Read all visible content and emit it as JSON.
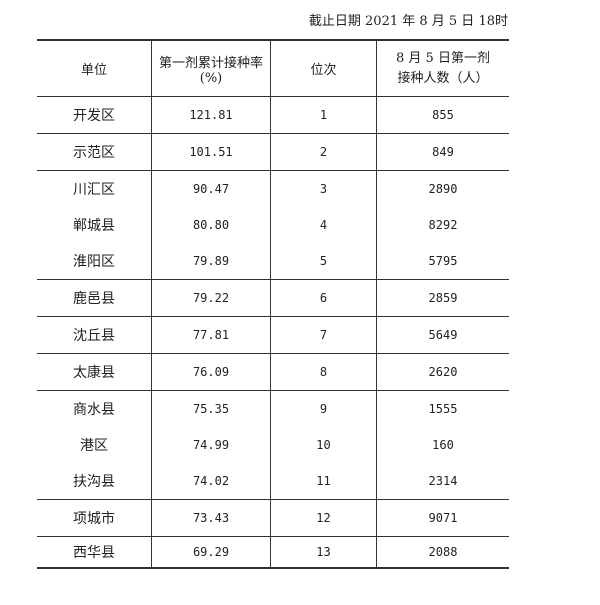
{
  "caption": "截止日期 2021 年 8 月 5 日 18时",
  "table": {
    "headers": [
      "单位",
      "第一剂累计接种率(%)",
      "位次",
      "8 月 5 日第一剂接种人数（人）"
    ],
    "header_last_lines": [
      "8 月 5 日第一剂",
      "接种人数（人）"
    ],
    "rows": [
      [
        "开发区",
        "121.81",
        "1",
        "855"
      ],
      [
        "示范区",
        "101.51",
        "2",
        "849"
      ],
      [
        "川汇区",
        "90.47",
        "3",
        "2890"
      ],
      [
        "郸城县",
        "80.80",
        "4",
        "8292"
      ],
      [
        "淮阳区",
        "79.89",
        "5",
        "5795"
      ],
      [
        "鹿邑县",
        "79.22",
        "6",
        "2859"
      ],
      [
        "沈丘县",
        "77.81",
        "7",
        "5649"
      ],
      [
        "太康县",
        "76.09",
        "8",
        "2620"
      ],
      [
        "商水县",
        "75.35",
        "9",
        "1555"
      ],
      [
        "港区",
        "74.99",
        "10",
        "160"
      ],
      [
        "扶沟县",
        "74.02",
        "11",
        "2314"
      ],
      [
        "项城市",
        "73.43",
        "12",
        "9071"
      ],
      [
        "西华县",
        "69.29",
        "13",
        "2088"
      ]
    ]
  }
}
